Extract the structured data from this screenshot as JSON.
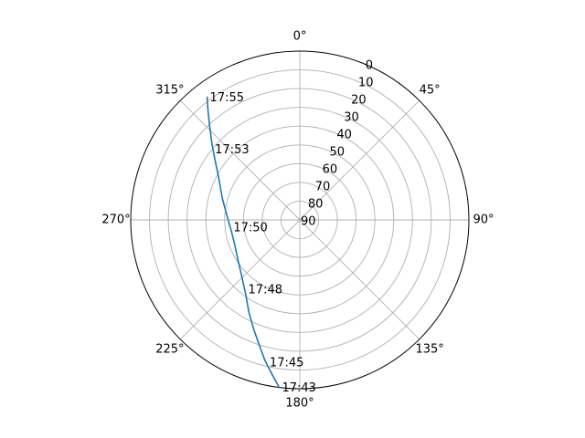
{
  "chart_data": {
    "type": "line",
    "projection": "polar",
    "theta_zero_location": "N",
    "theta_direction": "clockwise",
    "theta_unit": "degrees",
    "r_axis": {
      "reversed": true,
      "range": [
        90,
        0
      ],
      "ticks": [
        90,
        80,
        70,
        60,
        50,
        40,
        30,
        20,
        10,
        0
      ],
      "tick_labels": [
        "90",
        "80",
        "70",
        "60",
        "50",
        "40",
        "30",
        "20",
        "10",
        "0"
      ]
    },
    "theta_ticks": [
      0,
      45,
      90,
      135,
      180,
      225,
      270,
      315
    ],
    "theta_tick_labels": [
      "0°",
      "45°",
      "90°",
      "135°",
      "180°",
      "225°",
      "270°",
      "315°"
    ],
    "grid": true,
    "series": [
      {
        "color": "#1f77b4",
        "points": [
          {
            "az": 187,
            "el": 0
          },
          {
            "az": 190,
            "el": 6
          },
          {
            "az": 194,
            "el": 13
          },
          {
            "az": 198,
            "el": 20
          },
          {
            "az": 203,
            "el": 27
          },
          {
            "az": 209,
            "el": 34
          },
          {
            "az": 216,
            "el": 41
          },
          {
            "az": 226,
            "el": 47
          },
          {
            "az": 238,
            "el": 51
          },
          {
            "az": 250,
            "el": 53
          },
          {
            "az": 262,
            "el": 53
          },
          {
            "az": 274,
            "el": 51
          },
          {
            "az": 286,
            "el": 47
          },
          {
            "az": 298,
            "el": 41
          },
          {
            "az": 305,
            "el": 35
          },
          {
            "az": 311,
            "el": 28
          },
          {
            "az": 316,
            "el": 21
          },
          {
            "az": 320,
            "el": 14
          },
          {
            "az": 323,
            "el": 8
          }
        ]
      }
    ],
    "annotations": [
      {
        "text": "17:55",
        "az": 323,
        "el": 8
      },
      {
        "text": "17:53",
        "az": 309,
        "el": 30
      },
      {
        "text": "17:50",
        "az": 264,
        "el": 53
      },
      {
        "text": "17:48",
        "az": 218,
        "el": 43
      },
      {
        "text": "17:45",
        "az": 193,
        "el": 12
      },
      {
        "text": "17:43",
        "az": 187,
        "el": 0
      }
    ]
  }
}
